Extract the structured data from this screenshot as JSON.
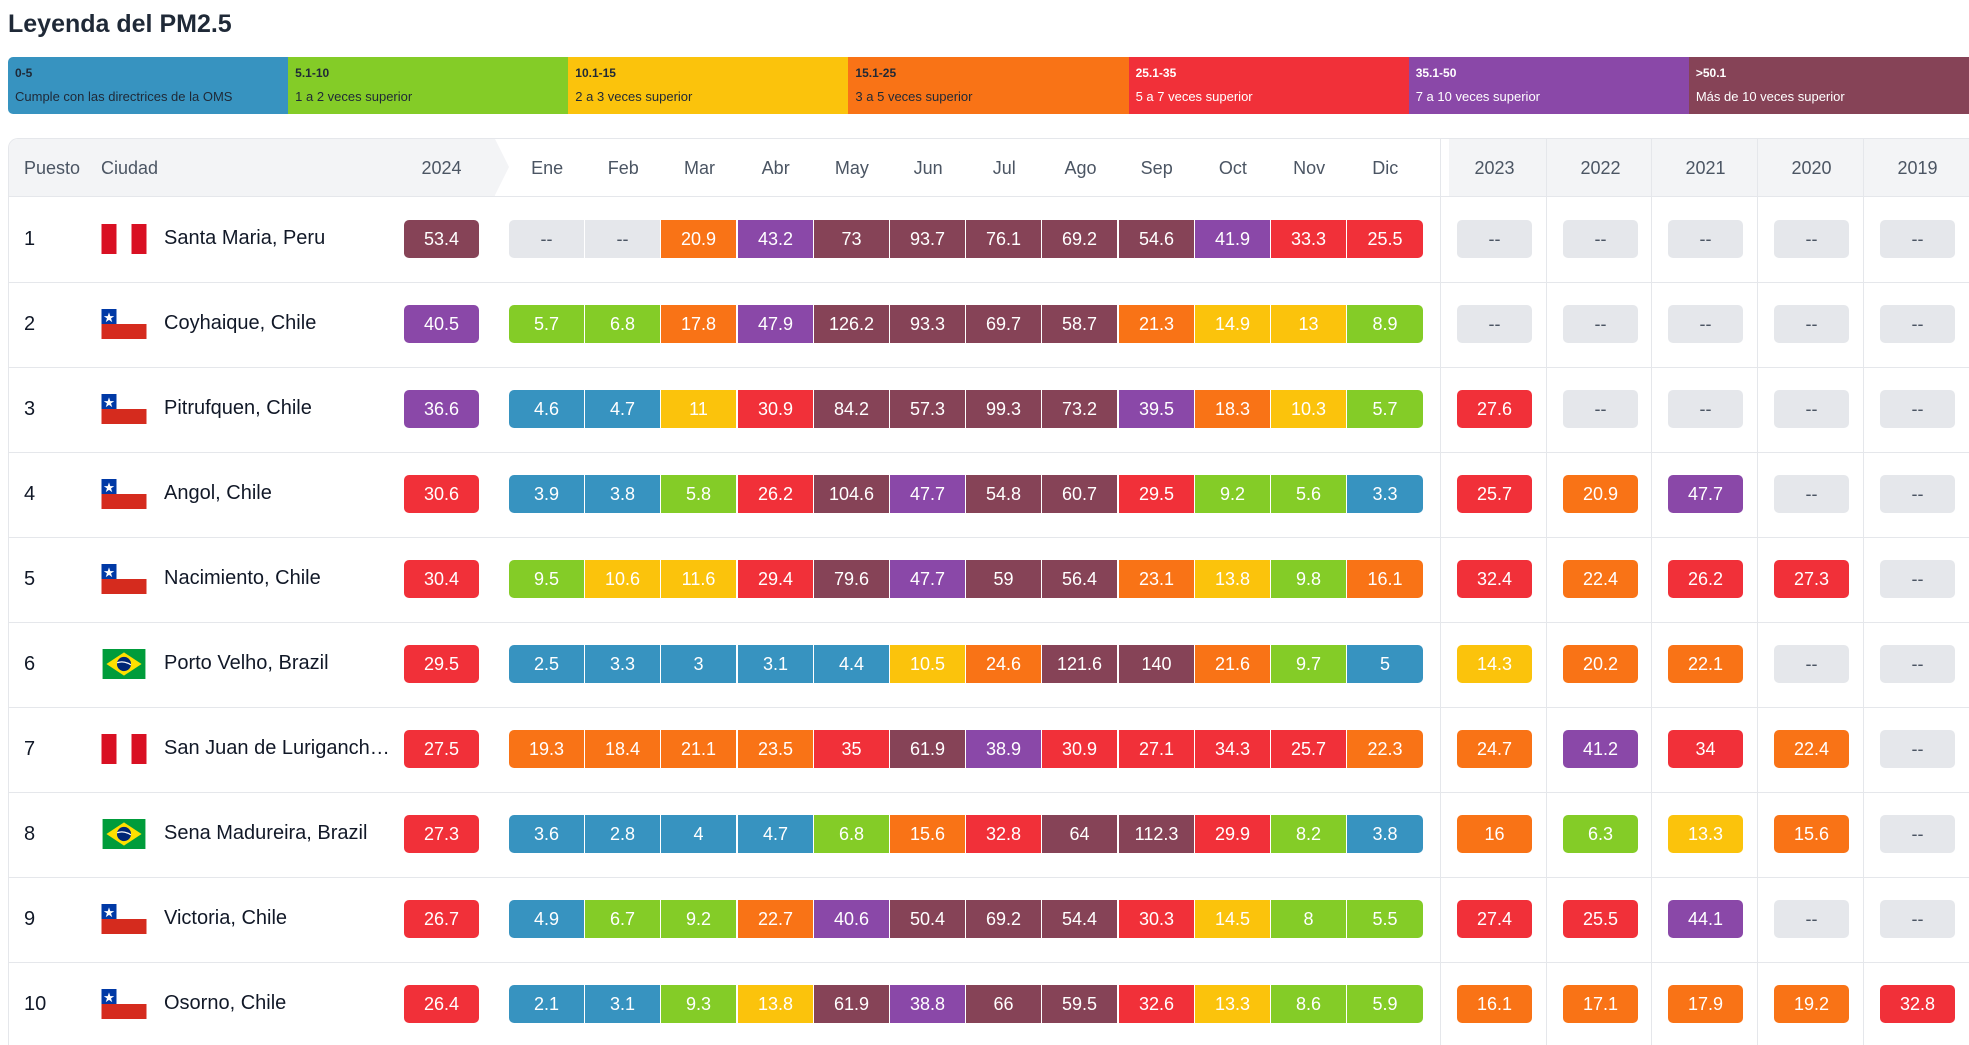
{
  "legend": {
    "title": "Leyenda del PM2.5",
    "items": [
      {
        "range": "0-5",
        "desc": "Cumple con las directrices de la OMS",
        "color": "#3793c0"
      },
      {
        "range": "5.1-10",
        "desc": "1 a 2 veces superior",
        "color": "#84cc27"
      },
      {
        "range": "10.1-15",
        "desc": "2 a 3 veces superior",
        "color": "#fbc30c"
      },
      {
        "range": "15.1-25",
        "desc": "3 a 5 veces superior",
        "color": "#f97316"
      },
      {
        "range": "25.1-35",
        "desc": "5 a 7 veces superior",
        "color": "#f13039"
      },
      {
        "range": "35.1-50",
        "desc": "7 a 10 veces superior",
        "color": "#8a48a8"
      },
      {
        "range": ">50.1",
        "desc": "Más de 10 veces superior",
        "color": "#864357"
      }
    ]
  },
  "table": {
    "headers": {
      "rank": "Puesto",
      "city": "Ciudad",
      "current_year": "2024",
      "months": [
        "Ene",
        "Feb",
        "Mar",
        "Abr",
        "May",
        "Jun",
        "Jul",
        "Ago",
        "Sep",
        "Oct",
        "Nov",
        "Dic"
      ],
      "past_years": [
        "2023",
        "2022",
        "2021",
        "2020",
        "2019"
      ]
    },
    "rows": [
      {
        "rank": "1",
        "city": "Santa Maria, Peru",
        "flag": "peru",
        "y2024": "53.4",
        "months": [
          "--",
          "--",
          "20.9",
          "43.2",
          "73",
          "93.7",
          "76.1",
          "69.2",
          "54.6",
          "41.9",
          "33.3",
          "25.5"
        ],
        "years": [
          "--",
          "--",
          "--",
          "--",
          "--"
        ]
      },
      {
        "rank": "2",
        "city": "Coyhaique, Chile",
        "flag": "chile",
        "y2024": "40.5",
        "months": [
          "5.7",
          "6.8",
          "17.8",
          "47.9",
          "126.2",
          "93.3",
          "69.7",
          "58.7",
          "21.3",
          "14.9",
          "13",
          "8.9"
        ],
        "years": [
          "--",
          "--",
          "--",
          "--",
          "--"
        ]
      },
      {
        "rank": "3",
        "city": "Pitrufquen, Chile",
        "flag": "chile",
        "y2024": "36.6",
        "months": [
          "4.6",
          "4.7",
          "11",
          "30.9",
          "84.2",
          "57.3",
          "99.3",
          "73.2",
          "39.5",
          "18.3",
          "10.3",
          "5.7"
        ],
        "years": [
          "27.6",
          "--",
          "--",
          "--",
          "--"
        ]
      },
      {
        "rank": "4",
        "city": "Angol, Chile",
        "flag": "chile",
        "y2024": "30.6",
        "months": [
          "3.9",
          "3.8",
          "5.8",
          "26.2",
          "104.6",
          "47.7",
          "54.8",
          "60.7",
          "29.5",
          "9.2",
          "5.6",
          "3.3"
        ],
        "years": [
          "25.7",
          "20.9",
          "47.7",
          "--",
          "--"
        ]
      },
      {
        "rank": "5",
        "city": "Nacimiento, Chile",
        "flag": "chile",
        "y2024": "30.4",
        "months": [
          "9.5",
          "10.6",
          "11.6",
          "29.4",
          "79.6",
          "47.7",
          "59",
          "56.4",
          "23.1",
          "13.8",
          "9.8",
          "16.1"
        ],
        "years": [
          "32.4",
          "22.4",
          "26.2",
          "27.3",
          "--"
        ]
      },
      {
        "rank": "6",
        "city": "Porto Velho, Brazil",
        "flag": "brazil",
        "y2024": "29.5",
        "months": [
          "2.5",
          "3.3",
          "3",
          "3.1",
          "4.4",
          "10.5",
          "24.6",
          "121.6",
          "140",
          "21.6",
          "9.7",
          "5"
        ],
        "years": [
          "14.3",
          "20.2",
          "22.1",
          "--",
          "--"
        ]
      },
      {
        "rank": "7",
        "city": "San Juan de Lurigancho, Peru",
        "flag": "peru",
        "y2024": "27.5",
        "months": [
          "19.3",
          "18.4",
          "21.1",
          "23.5",
          "35",
          "61.9",
          "38.9",
          "30.9",
          "27.1",
          "34.3",
          "25.7",
          "22.3"
        ],
        "years": [
          "24.7",
          "41.2",
          "34",
          "22.4",
          "--"
        ]
      },
      {
        "rank": "8",
        "city": "Sena Madureira, Brazil",
        "flag": "brazil",
        "y2024": "27.3",
        "months": [
          "3.6",
          "2.8",
          "4",
          "4.7",
          "6.8",
          "15.6",
          "32.8",
          "64",
          "112.3",
          "29.9",
          "8.2",
          "3.8"
        ],
        "years": [
          "16",
          "6.3",
          "13.3",
          "15.6",
          "--"
        ]
      },
      {
        "rank": "9",
        "city": "Victoria, Chile",
        "flag": "chile",
        "y2024": "26.7",
        "months": [
          "4.9",
          "6.7",
          "9.2",
          "22.7",
          "40.6",
          "50.4",
          "69.2",
          "54.4",
          "30.3",
          "14.5",
          "8",
          "5.5"
        ],
        "years": [
          "27.4",
          "25.5",
          "44.1",
          "--",
          "--"
        ]
      },
      {
        "rank": "10",
        "city": "Osorno, Chile",
        "flag": "chile",
        "y2024": "26.4",
        "months": [
          "2.1",
          "3.1",
          "9.3",
          "13.8",
          "61.9",
          "38.8",
          "66",
          "59.5",
          "32.6",
          "13.3",
          "8.6",
          "5.9"
        ],
        "years": [
          "16.1",
          "17.1",
          "17.9",
          "19.2",
          "32.8"
        ]
      }
    ]
  }
}
